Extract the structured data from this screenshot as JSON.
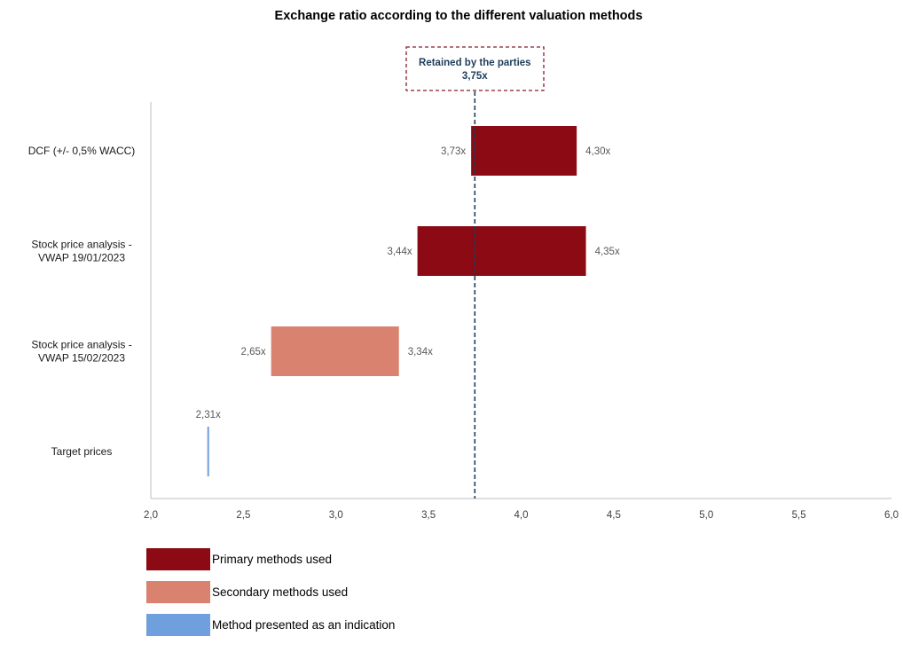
{
  "chart_data": {
    "type": "bar",
    "orientation": "horizontal-floating-range",
    "title": "Exchange ratio according to the different valuation methods",
    "xlim": [
      2.0,
      6.0
    ],
    "x_ticks": [
      "2,0",
      "2,5",
      "3,0",
      "3,5",
      "4,0",
      "4,5",
      "5,0",
      "5,5",
      "6,0"
    ],
    "x_tick_values": [
      2.0,
      2.5,
      3.0,
      3.5,
      4.0,
      4.5,
      5.0,
      5.5,
      6.0
    ],
    "grid": false,
    "categories": [
      "DCF (+/- 0,5% WACC)",
      "Stock price analysis - VWAP 19/01/2023",
      "Stock price analysis - VWAP 15/02/2023",
      "Target prices"
    ],
    "category_lines": [
      [
        "DCF (+/- 0,5% WACC)"
      ],
      [
        "Stock price analysis -",
        "VWAP 19/01/2023"
      ],
      [
        "Stock price analysis -",
        "VWAP 15/02/2023"
      ],
      [
        "Target prices"
      ]
    ],
    "ranges": [
      {
        "low": 3.73,
        "high": 4.3,
        "low_label": "3,73x",
        "high_label": "4,30x",
        "group": "primary"
      },
      {
        "low": 3.44,
        "high": 4.35,
        "low_label": "3,44x",
        "high_label": "4,35x",
        "group": "primary"
      },
      {
        "low": 2.65,
        "high": 3.34,
        "low_label": "2,65x",
        "high_label": "3,34x",
        "group": "secondary"
      },
      {
        "low": 2.31,
        "high": 2.31,
        "low_label": "",
        "high_label": "2,31x",
        "group": "indication"
      }
    ],
    "reference_line": {
      "value": 3.75,
      "label": "Retained by the parties",
      "value_label": "3,75x",
      "color": "#1f3d5a",
      "box_color": "#8b1a2a"
    },
    "legend": {
      "placement": "bottom-left",
      "items": [
        {
          "label": "Primary methods used",
          "color": "#8b0a14"
        },
        {
          "label": "Secondary methods used",
          "color": "#d9826f"
        },
        {
          "label": "Method presented as an indication",
          "color": "#6f9fdc"
        }
      ]
    },
    "colors": {
      "primary": "#8b0a14",
      "secondary": "#d9826f",
      "indication": "#6f9fdc",
      "axis": "#bfbfbf"
    }
  }
}
